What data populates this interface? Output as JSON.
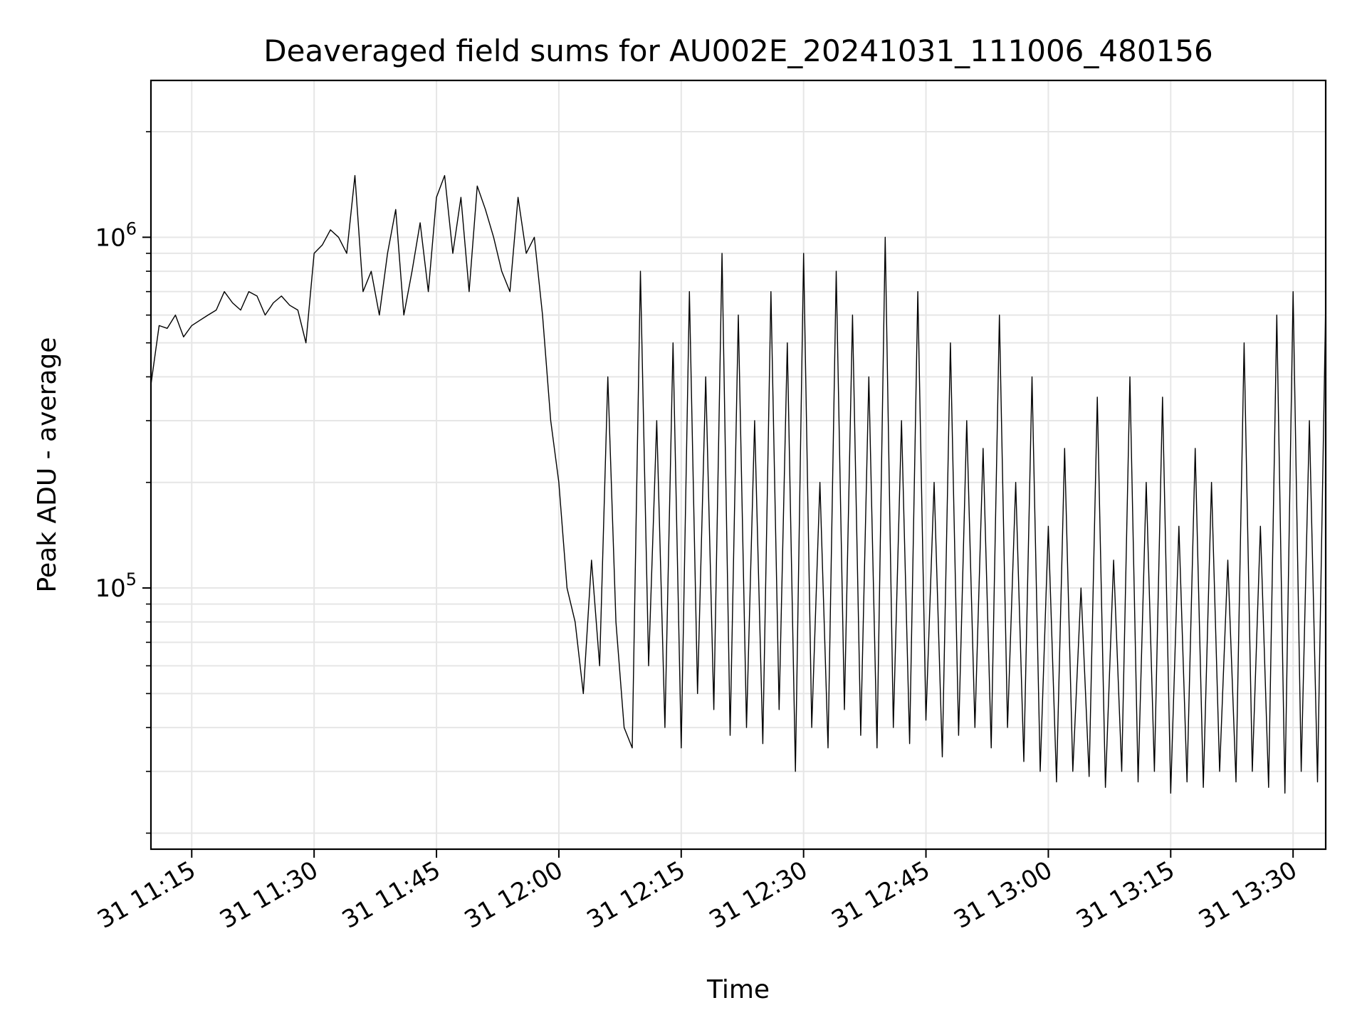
{
  "chart_data": {
    "type": "line",
    "title": "Deaveraged field sums for AU002E_20241031_111006_480156",
    "xlabel": "Time",
    "ylabel": "Peak ADU - average",
    "y_scale": "log",
    "ylim": [
      18000,
      2800000
    ],
    "xlim": [
      "31 11:10",
      "31 13:34"
    ],
    "x_tick_labels": [
      "31 11:15",
      "31 11:30",
      "31 11:45",
      "31 12:00",
      "31 12:15",
      "31 12:30",
      "31 12:45",
      "31 13:00",
      "31 13:15",
      "31 13:30"
    ],
    "y_tick_labels": [
      {
        "value": 1000000,
        "base": "10",
        "exp": "6"
      },
      {
        "value": 100000,
        "base": "10",
        "exp": "5"
      }
    ],
    "grid": true,
    "line_color": "#000000",
    "series": [
      {
        "x": [
          "11:10",
          "11:11",
          "11:12",
          "11:13",
          "11:14",
          "11:15",
          "11:16",
          "11:17",
          "11:18",
          "11:19",
          "11:20",
          "11:21",
          "11:22",
          "11:23",
          "11:24",
          "11:25",
          "11:26",
          "11:27",
          "11:28",
          "11:29",
          "11:30",
          "11:31",
          "11:32",
          "11:33",
          "11:34",
          "11:35",
          "11:36",
          "11:37",
          "11:38",
          "11:39",
          "11:40",
          "11:41",
          "11:42",
          "11:43",
          "11:44",
          "11:45",
          "11:46",
          "11:47",
          "11:48",
          "11:49",
          "11:50",
          "11:51",
          "11:52",
          "11:53",
          "11:54",
          "11:55",
          "11:56",
          "11:57",
          "11:58",
          "11:59",
          "12:00",
          "12:01",
          "12:02",
          "12:03",
          "12:04",
          "12:05",
          "12:06",
          "12:07",
          "12:08",
          "12:09",
          "12:10",
          "12:11",
          "12:12",
          "12:13",
          "12:14",
          "12:15",
          "12:16",
          "12:17",
          "12:18",
          "12:19",
          "12:20",
          "12:21",
          "12:22",
          "12:23",
          "12:24",
          "12:25",
          "12:26",
          "12:27",
          "12:28",
          "12:29",
          "12:30",
          "12:31",
          "12:32",
          "12:33",
          "12:34",
          "12:35",
          "12:36",
          "12:37",
          "12:38",
          "12:39",
          "12:40",
          "12:41",
          "12:42",
          "12:43",
          "12:44",
          "12:45",
          "12:46",
          "12:47",
          "12:48",
          "12:49",
          "12:50",
          "12:51",
          "12:52",
          "12:53",
          "12:54",
          "12:55",
          "12:56",
          "12:57",
          "12:58",
          "12:59",
          "13:00",
          "13:01",
          "13:02",
          "13:03",
          "13:04",
          "13:05",
          "13:06",
          "13:07",
          "13:08",
          "13:09",
          "13:10",
          "13:11",
          "13:12",
          "13:13",
          "13:14",
          "13:15",
          "13:16",
          "13:17",
          "13:18",
          "13:19",
          "13:20",
          "13:21",
          "13:22",
          "13:23",
          "13:24",
          "13:25",
          "13:26",
          "13:27",
          "13:28",
          "13:29",
          "13:30",
          "13:31",
          "13:32",
          "13:33",
          "13:34"
        ],
        "y": [
          380000,
          560000,
          550000,
          600000,
          520000,
          560000,
          580000,
          600000,
          620000,
          700000,
          650000,
          620000,
          700000,
          680000,
          600000,
          650000,
          680000,
          640000,
          620000,
          500000,
          900000,
          950000,
          1050000,
          1000000,
          900000,
          1500000,
          700000,
          800000,
          600000,
          900000,
          1200000,
          600000,
          800000,
          1100000,
          700000,
          1300000,
          1500000,
          900000,
          1300000,
          700000,
          1400000,
          1200000,
          1000000,
          800000,
          700000,
          1300000,
          900000,
          1000000,
          600000,
          300000,
          200000,
          100000,
          80000,
          50000,
          120000,
          60000,
          400000,
          80000,
          40000,
          35000,
          800000,
          60000,
          300000,
          40000,
          500000,
          35000,
          700000,
          50000,
          400000,
          45000,
          900000,
          38000,
          600000,
          40000,
          300000,
          36000,
          700000,
          45000,
          500000,
          30000,
          900000,
          40000,
          200000,
          35000,
          800000,
          45000,
          600000,
          38000,
          400000,
          35000,
          1000000,
          40000,
          300000,
          36000,
          700000,
          42000,
          200000,
          33000,
          500000,
          38000,
          300000,
          40000,
          250000,
          35000,
          600000,
          40000,
          200000,
          32000,
          400000,
          30000,
          150000,
          28000,
          250000,
          30000,
          100000,
          29000,
          350000,
          27000,
          120000,
          30000,
          400000,
          28000,
          200000,
          30000,
          350000,
          26000,
          150000,
          28000,
          250000,
          27000,
          200000,
          30000,
          120000,
          28000,
          500000,
          30000,
          150000,
          27000,
          600000,
          26000,
          700000,
          30000,
          300000,
          28000,
          650000
        ]
      }
    ]
  }
}
